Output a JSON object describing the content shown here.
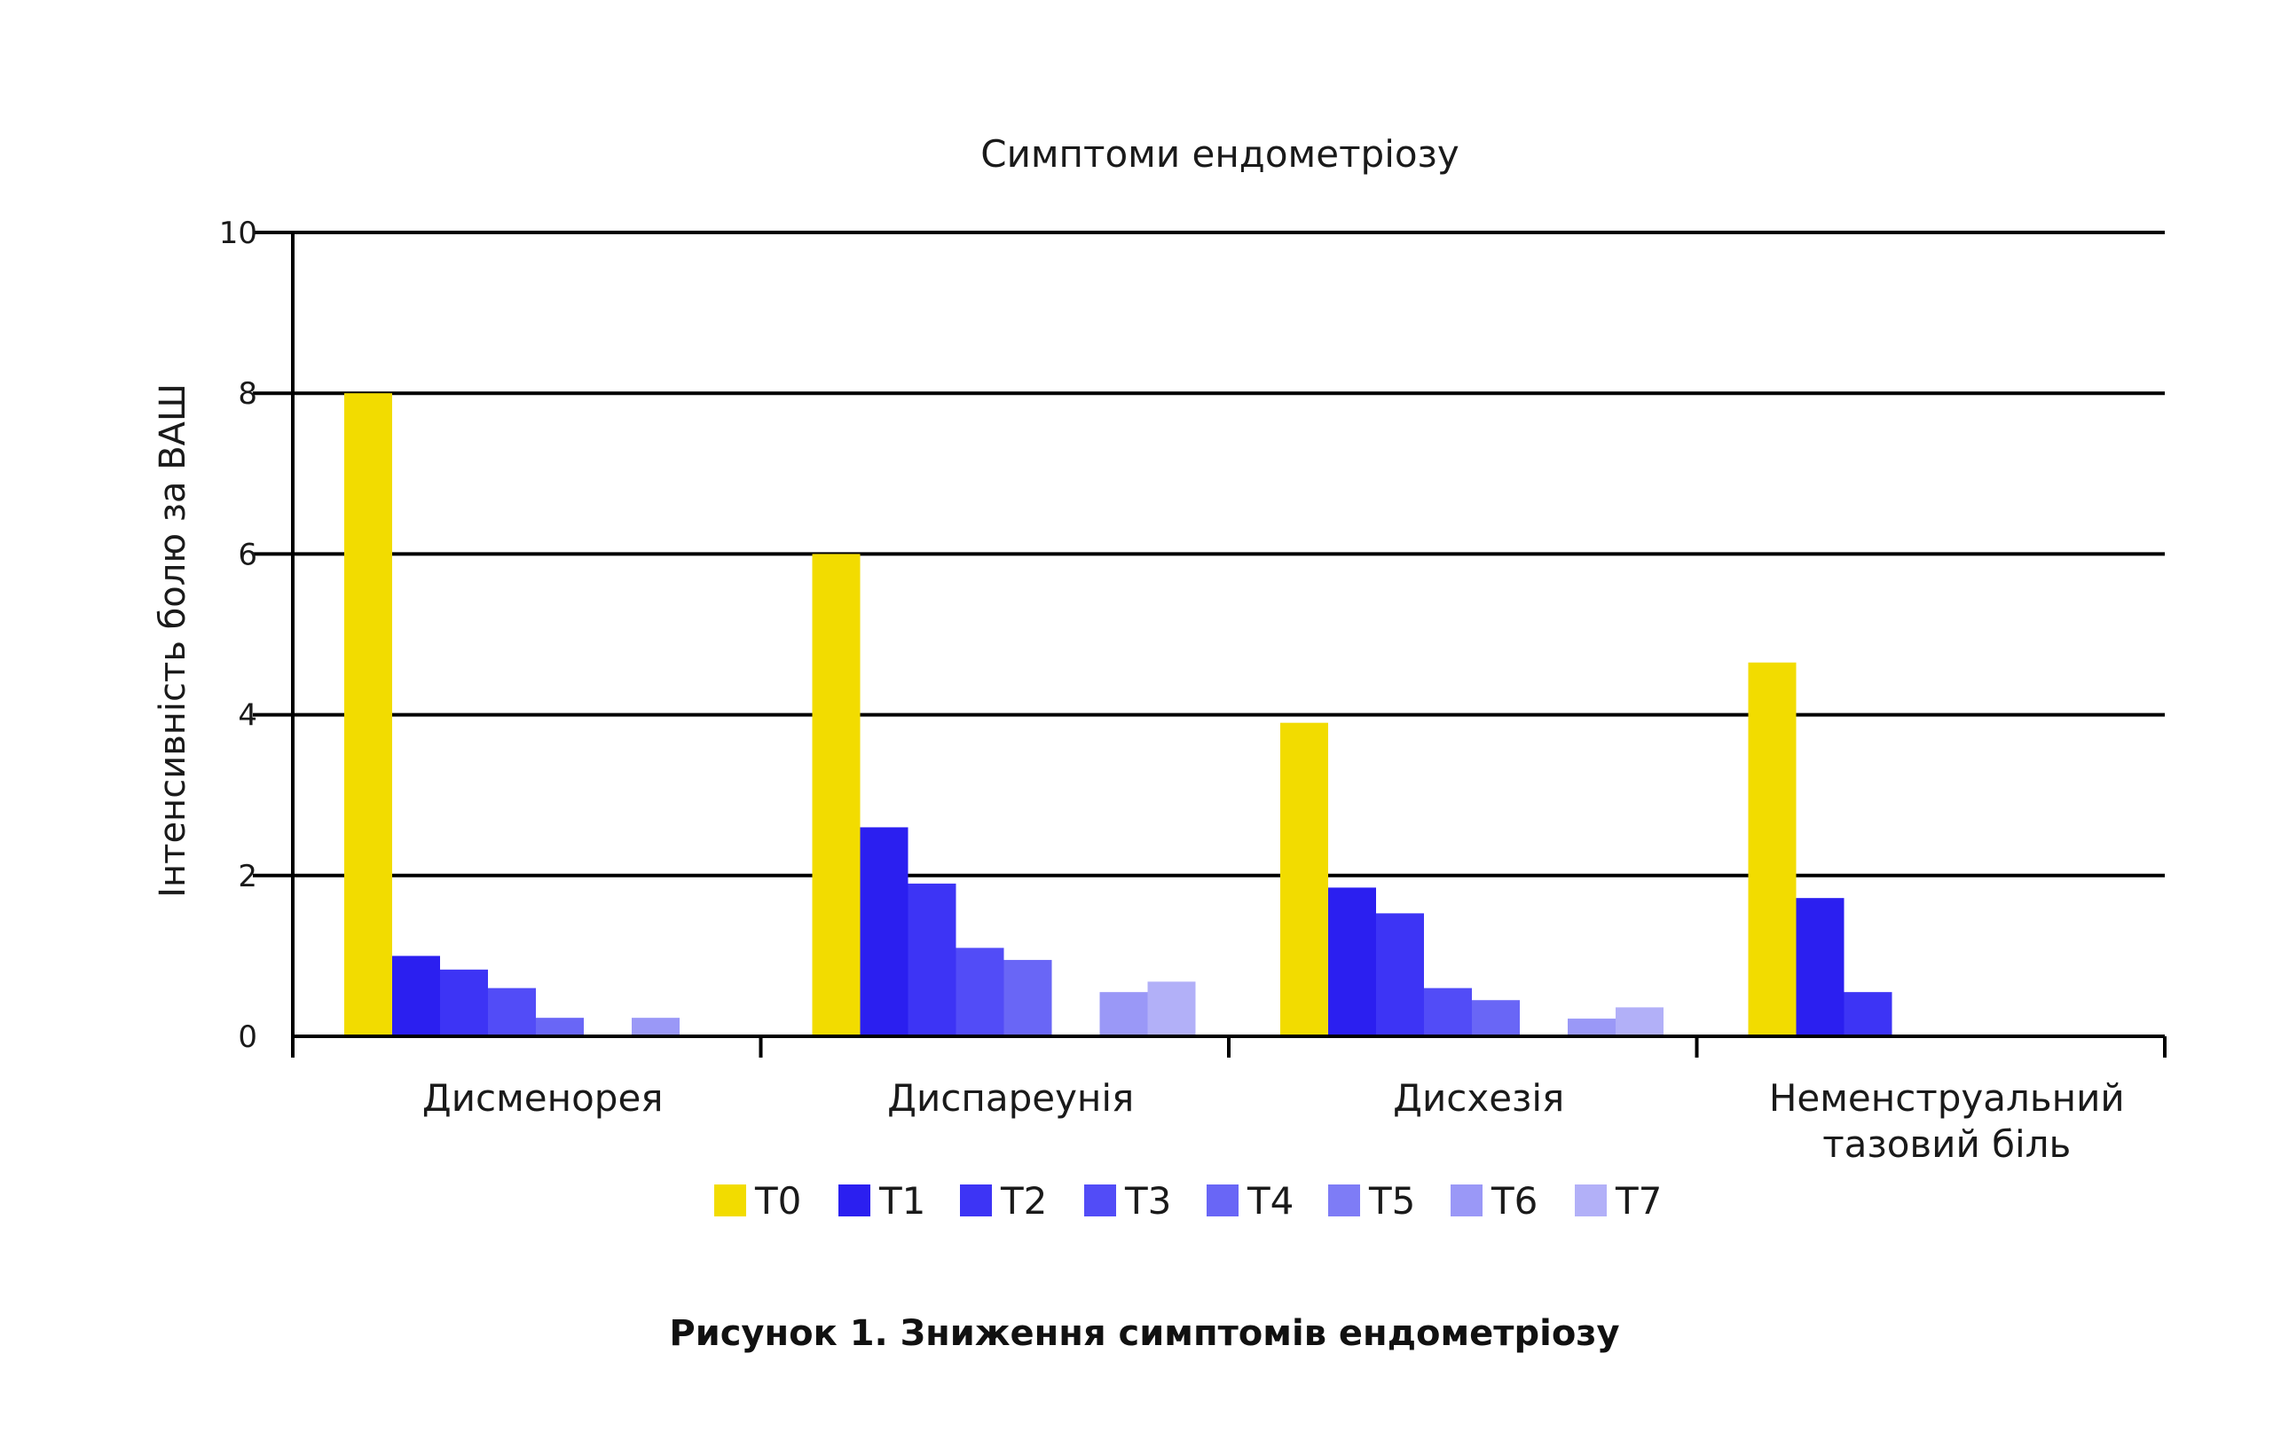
{
  "chart_data": {
    "type": "bar",
    "title": "Симптоми ендометріозу",
    "ylabel": "Інтенсивність болю за ВАШ",
    "xlabel": "",
    "ylim": [
      0,
      10
    ],
    "yticks": [
      "0",
      "2",
      "4",
      "6",
      "8",
      "10"
    ],
    "grid": true,
    "legend_position": "bottom",
    "categories": [
      [
        "Дисменорея"
      ],
      [
        "Диспареунія"
      ],
      [
        "Дисхезія"
      ],
      [
        "Неменструальний",
        "тазовий біль"
      ]
    ],
    "series": [
      {
        "name": "T0",
        "color": "#F2DC00",
        "values": [
          8.0,
          6.0,
          3.9,
          4.65
        ]
      },
      {
        "name": "T1",
        "color": "#2B1FF0",
        "values": [
          1.0,
          2.6,
          1.85,
          1.72
        ]
      },
      {
        "name": "T2",
        "color": "#3D34F5",
        "values": [
          0.83,
          1.9,
          1.53,
          0.55
        ]
      },
      {
        "name": "T3",
        "color": "#524CF7",
        "values": [
          0.6,
          1.1,
          0.6,
          0
        ]
      },
      {
        "name": "T4",
        "color": "#6966F6",
        "values": [
          0.23,
          0.95,
          0.45,
          0
        ]
      },
      {
        "name": "T5",
        "color": "#7E7CF6",
        "values": [
          0,
          0,
          0,
          0
        ]
      },
      {
        "name": "T6",
        "color": "#9A98F7",
        "values": [
          0.23,
          0.55,
          0.22,
          0
        ]
      },
      {
        "name": "T7",
        "color": "#B2B0F8",
        "values": [
          0,
          0.68,
          0.36,
          0
        ]
      }
    ]
  },
  "caption": "Рисунок 1. Зниження симптомів ендометріозу"
}
